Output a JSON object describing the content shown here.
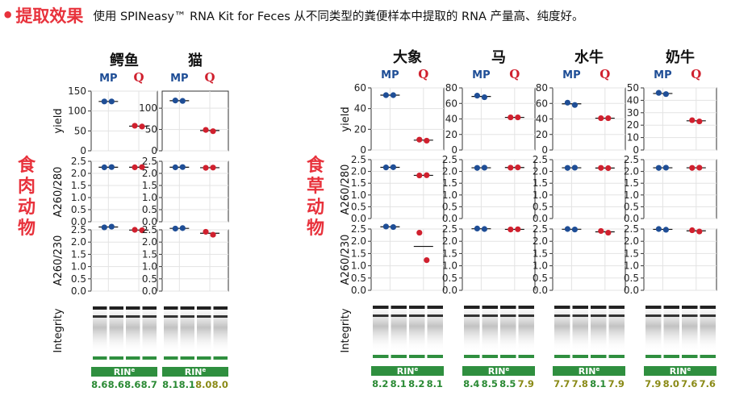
{
  "header": {
    "bullet": "•",
    "title": "提取效果",
    "description": "使用 SPINeasy™ RNA Kit for Feces 从不同类型的粪便样本中提取的 RNA 产量高、纯度好。"
  },
  "legend": {
    "brand_mp": "MP",
    "brand_q": "Q",
    "color_mp": "#1f4e96",
    "color_q": "#d0202e"
  },
  "group_labels": [
    {
      "text": "食肉动物"
    },
    {
      "text": "食草动物"
    }
  ],
  "row_labels": {
    "yield": "yield",
    "a260_280": "A260/280",
    "a260_230": "A260/230",
    "integrity": "Integrity"
  },
  "rin_label": "RIN",
  "rin_superscript": "e",
  "colors": {
    "label_red": "#e8323c",
    "rin_green_bg": "#2f8f3f",
    "rin_green_text": "#2a8a34",
    "rin_olive_text": "#8a8a16"
  },
  "chart_data": {
    "type": "scatter",
    "panels": [
      {
        "name": "鳄鱼",
        "yield_ticks": [
          "150",
          "100",
          "50",
          "0"
        ],
        "yield_ylim": [
          0,
          150
        ],
        "yield": {
          "mp": [
            124,
            124
          ],
          "q": [
            63,
            61
          ]
        },
        "a260_280": {
          "mp": [
            2.25,
            2.26
          ],
          "q": [
            2.25,
            2.26
          ]
        },
        "a260_230": {
          "mp": [
            2.6,
            2.63
          ],
          "q": [
            2.5,
            2.48
          ]
        },
        "rin": [
          "8.6",
          "8.6",
          "8.6",
          "8.7"
        ],
        "rin_colors": [
          "green",
          "green",
          "green",
          "green"
        ]
      },
      {
        "name": "猫",
        "yield_ticks": [
          "100",
          "50",
          "0"
        ],
        "yield_ylim": [
          0,
          140
        ],
        "yield": {
          "mp": [
            118,
            117
          ],
          "q": [
            49,
            46
          ]
        },
        "a260_280": {
          "mp": [
            2.25,
            2.26
          ],
          "q": [
            2.23,
            2.24
          ]
        },
        "a260_230": {
          "mp": [
            2.55,
            2.57
          ],
          "q": [
            2.42,
            2.3
          ]
        },
        "rin": [
          "8.1",
          "8.1",
          "8.0",
          "8.0"
        ],
        "rin_colors": [
          "green",
          "green",
          "olive",
          "olive"
        ]
      },
      {
        "name": "大象",
        "yield_ticks": [
          "60",
          "40",
          "20",
          "0"
        ],
        "yield_ylim": [
          0,
          60
        ],
        "yield": {
          "mp": [
            53,
            53
          ],
          "q": [
            10,
            9
          ]
        },
        "a260_280": {
          "mp": [
            2.17,
            2.18
          ],
          "q": [
            1.83,
            1.84
          ]
        },
        "a260_230": {
          "mp": [
            2.6,
            2.58
          ],
          "q": [
            2.35,
            1.23
          ]
        },
        "rin": [
          "8.2",
          "8.1",
          "8.2",
          "8.1"
        ],
        "rin_colors": [
          "green",
          "green",
          "green",
          "green"
        ]
      },
      {
        "name": "马",
        "yield_ticks": [
          "80",
          "60",
          "40",
          "20",
          "0"
        ],
        "yield_ylim": [
          0,
          80
        ],
        "yield": {
          "mp": [
            70,
            68
          ],
          "q": [
            42,
            42
          ]
        },
        "a260_280": {
          "mp": [
            2.15,
            2.16
          ],
          "q": [
            2.16,
            2.17
          ]
        },
        "a260_230": {
          "mp": [
            2.52,
            2.5
          ],
          "q": [
            2.48,
            2.49
          ]
        },
        "rin": [
          "8.4",
          "8.5",
          "8.5",
          "7.9"
        ],
        "rin_colors": [
          "green",
          "green",
          "green",
          "olive"
        ]
      },
      {
        "name": "水牛",
        "yield_ticks": [
          "80",
          "60",
          "40",
          "20",
          "0"
        ],
        "yield_ylim": [
          0,
          80
        ],
        "yield": {
          "mp": [
            61,
            58
          ],
          "q": [
            41,
            41
          ]
        },
        "a260_280": {
          "mp": [
            2.15,
            2.16
          ],
          "q": [
            2.15,
            2.14
          ]
        },
        "a260_230": {
          "mp": [
            2.5,
            2.48
          ],
          "q": [
            2.42,
            2.35
          ]
        },
        "rin": [
          "7.7",
          "7.8",
          "8.1",
          "7.9"
        ],
        "rin_colors": [
          "olive",
          "olive",
          "green",
          "olive"
        ]
      },
      {
        "name": "奶牛",
        "yield_ticks": [
          "50",
          "40",
          "30",
          "20",
          "10",
          "0"
        ],
        "yield_ylim": [
          0,
          50
        ],
        "yield": {
          "mp": [
            46,
            45
          ],
          "q": [
            24,
            23
          ]
        },
        "a260_280": {
          "mp": [
            2.15,
            2.16
          ],
          "q": [
            2.15,
            2.16
          ]
        },
        "a260_230": {
          "mp": [
            2.5,
            2.47
          ],
          "q": [
            2.45,
            2.4
          ]
        },
        "rin": [
          "7.9",
          "8.0",
          "7.6",
          "7.6"
        ],
        "rin_colors": [
          "olive",
          "olive",
          "olive",
          "olive"
        ]
      }
    ],
    "a260_280_ticks": [
      "2.5",
      "2.0",
      "1.5",
      "1.0",
      "0.5",
      "0.0"
    ],
    "a260_230_ticks": [
      "2.5",
      "2.0",
      "1.5",
      "1.0",
      "0.5",
      "0.0"
    ],
    "ratio_ylim": [
      0,
      2.5
    ]
  }
}
